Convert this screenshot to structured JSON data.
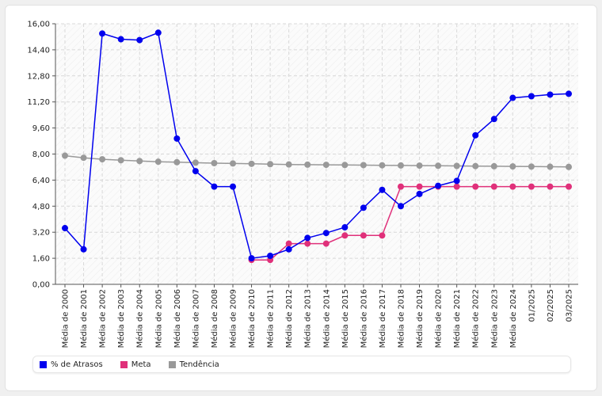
{
  "chart_data": {
    "type": "line",
    "categories": [
      "Média de 2000",
      "Média de 2001",
      "Média de 2002",
      "Média de 2003",
      "Média de 2004",
      "Média de 2005",
      "Média de 2006",
      "Média de 2007",
      "Média de 2008",
      "Média de 2009",
      "Média de 2010",
      "Média de 2011",
      "Média de 2012",
      "Média de 2013",
      "Média de 2014",
      "Média de 2015",
      "Média de 2016",
      "Média de 2017",
      "Média de 2018",
      "Média de 2019",
      "Média de 2020",
      "Média de 2021",
      "Média de 2022",
      "Média de 2023",
      "Média de 2024",
      "01/2025",
      "02/2025",
      "03/2025"
    ],
    "y_ticks": [
      "0,00",
      "1,60",
      "3,20",
      "4,80",
      "6,40",
      "8,00",
      "9,60",
      "11,20",
      "12,80",
      "14,40",
      "16,00"
    ],
    "ylim": [
      0,
      16
    ],
    "grid": true,
    "legend_position": "bottom-left",
    "series": [
      {
        "name": "% de Atrasos",
        "color": "#0000ee",
        "values": [
          3.45,
          2.15,
          15.4,
          15.05,
          15.0,
          15.45,
          8.95,
          6.95,
          6.0,
          6.0,
          1.6,
          1.75,
          2.15,
          2.85,
          3.15,
          3.5,
          4.7,
          5.8,
          4.8,
          5.55,
          6.05,
          6.35,
          9.15,
          10.15,
          11.45,
          11.55,
          11.65,
          11.7
        ]
      },
      {
        "name": "Meta",
        "color": "#e0307a",
        "values": [
          null,
          null,
          null,
          null,
          null,
          null,
          null,
          null,
          null,
          null,
          1.5,
          1.5,
          2.5,
          2.5,
          2.5,
          3.0,
          3.0,
          3.0,
          6.0,
          6.0,
          6.0,
          6.0,
          6.0,
          6.0,
          6.0,
          6.0,
          6.0,
          6.0
        ]
      },
      {
        "name": "Tendência",
        "color": "#999999",
        "values": [
          7.9,
          7.77,
          7.68,
          7.62,
          7.57,
          7.53,
          7.5,
          7.47,
          7.44,
          7.42,
          7.4,
          7.38,
          7.36,
          7.35,
          7.34,
          7.33,
          7.32,
          7.31,
          7.3,
          7.29,
          7.28,
          7.27,
          7.26,
          7.25,
          7.24,
          7.23,
          7.22,
          7.21
        ]
      }
    ]
  }
}
